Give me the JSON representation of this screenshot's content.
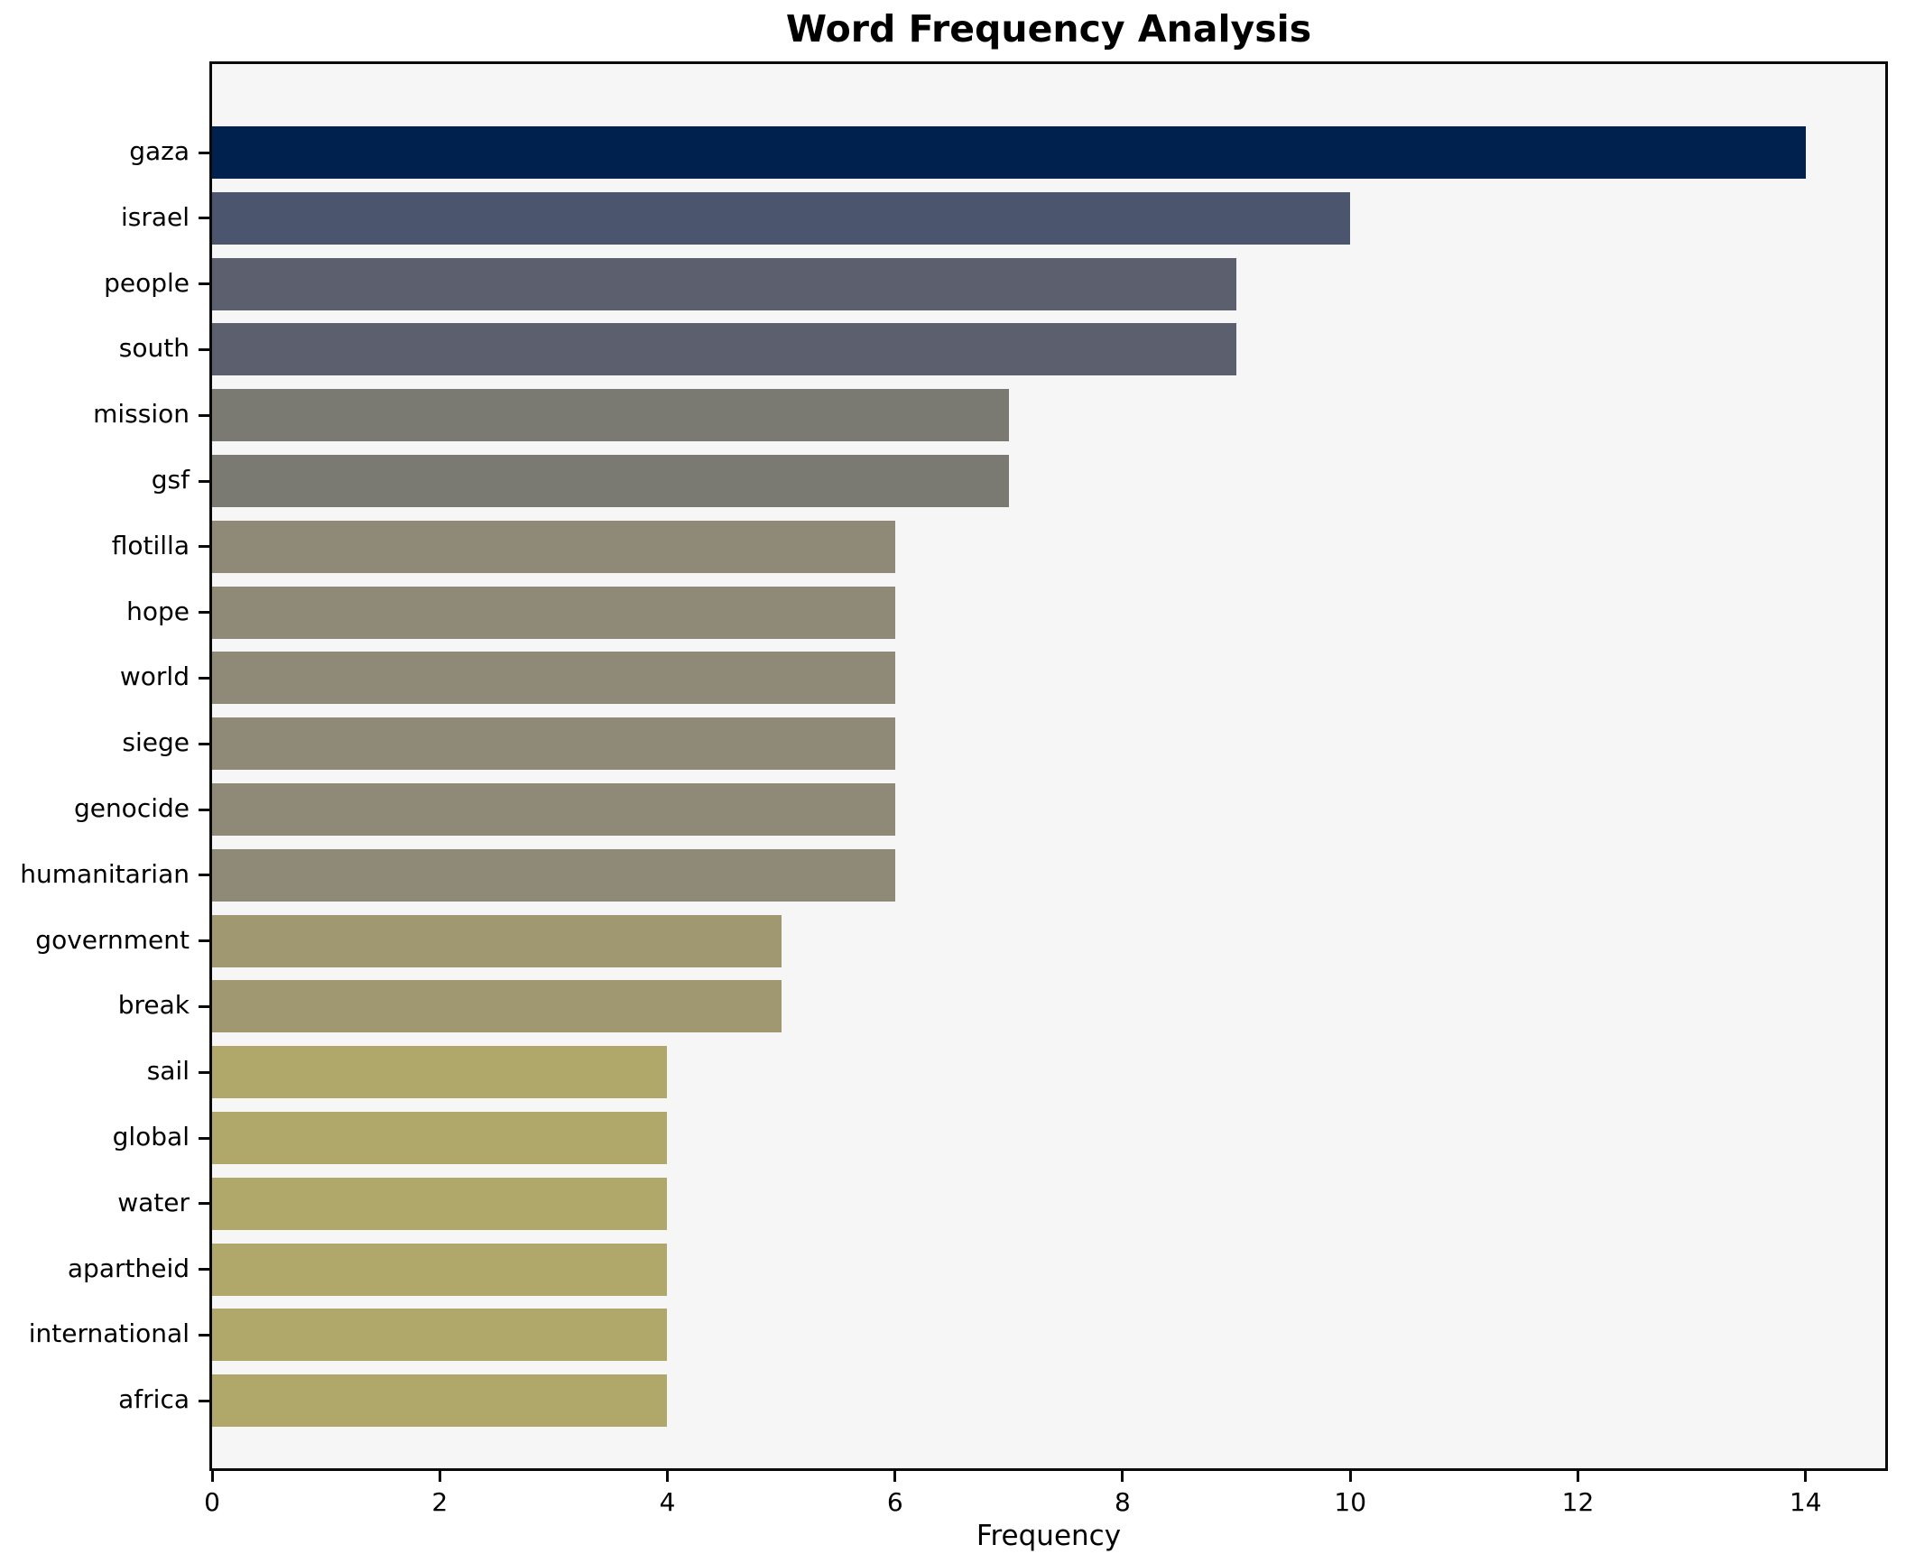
{
  "chart_data": {
    "type": "bar",
    "orientation": "horizontal",
    "title": "Word Frequency Analysis",
    "xlabel": "Frequency",
    "ylabel": "",
    "categories": [
      "gaza",
      "israel",
      "people",
      "south",
      "mission",
      "gsf",
      "flotilla",
      "hope",
      "world",
      "siege",
      "genocide",
      "humanitarian",
      "government",
      "break",
      "sail",
      "global",
      "water",
      "apartheid",
      "international",
      "africa"
    ],
    "values": [
      14,
      10,
      9,
      9,
      7,
      7,
      6,
      6,
      6,
      6,
      6,
      6,
      5,
      5,
      4,
      4,
      4,
      4,
      4,
      4
    ],
    "bar_colors": [
      "#00204d",
      "#4c556e",
      "#5c606e",
      "#5c606e",
      "#7b7a72",
      "#7b7a72",
      "#8f8a78",
      "#8f8a78",
      "#8f8a78",
      "#8f8a78",
      "#8f8a78",
      "#8f8a78",
      "#9f9870",
      "#9f9870",
      "#b0a76b",
      "#b0a76b",
      "#b0a76b",
      "#b0a76b",
      "#b0a76b",
      "#b0a76b"
    ],
    "x_ticks": [
      0,
      2,
      4,
      6,
      8,
      10,
      12,
      14
    ],
    "xlim": [
      0,
      14.7
    ],
    "grid": false,
    "legend": "none",
    "colors": {
      "figure_background": "#ffffff",
      "axes_background": "#f6f6f7",
      "spine": "#0a0a0a",
      "text": "#000000"
    }
  }
}
